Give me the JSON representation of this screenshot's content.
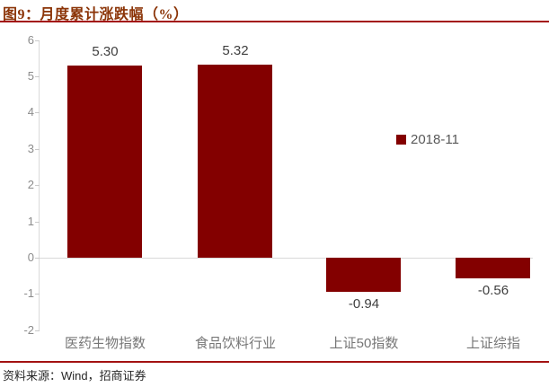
{
  "figure": {
    "title": "图9：月度累计涨跌幅（%）",
    "source": "资料来源：Wind，招商证券"
  },
  "chart_data": {
    "type": "bar",
    "title": "月度累计涨跌幅（%）",
    "categories": [
      "医药生物指数",
      "食品饮料行业",
      "上证50指数",
      "上证综指"
    ],
    "series": [
      {
        "name": "2018-11",
        "values": [
          5.3,
          5.32,
          -0.94,
          -0.56
        ]
      }
    ],
    "value_labels": [
      "5.30",
      "5.32",
      "-0.94",
      "-0.56"
    ],
    "y_ticks": [
      6,
      5,
      4,
      3,
      2,
      1,
      0,
      -1,
      -2
    ],
    "ylim": [
      -2,
      6
    ],
    "xlabel": "",
    "ylabel": "",
    "grid": false,
    "legend_position": "middle-right",
    "legend_label": "2018-11"
  },
  "colors": {
    "bar": "#830000",
    "rule": "#A31212",
    "title": "#8B3407"
  }
}
